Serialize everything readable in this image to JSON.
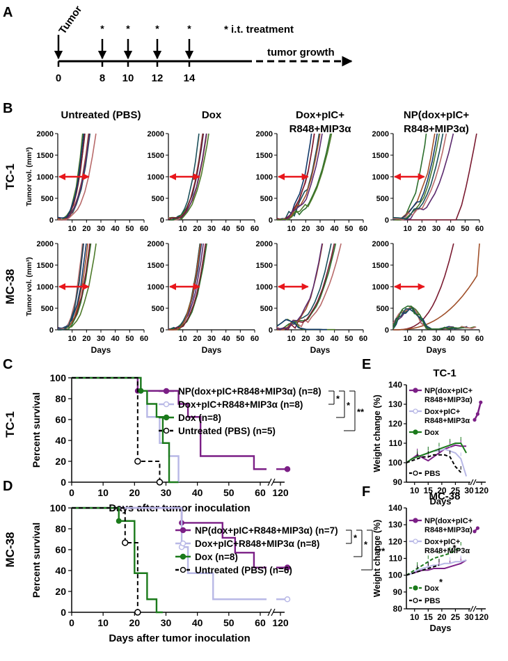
{
  "panel_labels": {
    "A": "A",
    "B": "B",
    "C": "C",
    "D": "D",
    "E": "E",
    "F": "F"
  },
  "timeline": {
    "tumor_label": "Tumor",
    "days": [
      "0",
      "8",
      "10",
      "12",
      "14"
    ],
    "star": "*",
    "treatment_note": "* i.t. treatment",
    "growth_label": "tumor growth"
  },
  "spaghetti": {
    "columns": [
      "Untreated (PBS)",
      "Dox",
      "Dox+pIC+\nR848+MIP3α",
      "NP(dox+pIC+\nR848+MIP3α)"
    ],
    "rows": [
      "TC-1",
      "MC-38"
    ],
    "ylabel": "Tumor vol. (mm³)",
    "xlabel": "Days",
    "yticks": [
      "0",
      "500",
      "1000",
      "1500",
      "2000"
    ],
    "xticks": [
      "10",
      "20",
      "30",
      "40",
      "50",
      "60"
    ]
  },
  "colors": {
    "np": "#7b1f86",
    "dox_combo": "#b8b8e6",
    "dox": "#1b7a1b",
    "pbs": "#000000",
    "arrow": "#e8161b"
  },
  "survival_common": {
    "ylabel": "Percent survival",
    "xlabel": "Days after tumor inoculation",
    "yticks": [
      "0",
      "20",
      "40",
      "60",
      "80",
      "100"
    ],
    "xticks": [
      "0",
      "10",
      "20",
      "30",
      "40",
      "50",
      "60",
      "120"
    ]
  },
  "weight_common": {
    "ylabel": "Weight change (%)",
    "xlabel": "Days"
  },
  "chart_data": [
    {
      "id": "survival_tc1",
      "type": "line",
      "row_label": "TC-1",
      "xlim": [
        0,
        62
      ],
      "ylim": [
        0,
        100
      ],
      "series": [
        {
          "name": "NP(dox+pIC+R848+MIP3α) (n=8)",
          "x": [
            0,
            21,
            34,
            37,
            41,
            58,
            62
          ],
          "y": [
            100,
            87.5,
            75,
            62.5,
            25,
            12.5,
            12.5
          ]
        },
        {
          "name": "Dox+pIC+R848+MIP3α (n=8)",
          "x": [
            0,
            22,
            24,
            28,
            31,
            34
          ],
          "y": [
            100,
            87.5,
            62.5,
            37.5,
            25,
            0
          ]
        },
        {
          "name": "Dox (n=8)",
          "x": [
            0,
            22,
            24,
            27,
            29,
            31,
            34
          ],
          "y": [
            100,
            87.5,
            75,
            62.5,
            37.5,
            0,
            0
          ]
        },
        {
          "name": "Untreated (PBS) (n=5)",
          "x": [
            0,
            21,
            28
          ],
          "y": [
            100,
            20,
            0
          ]
        }
      ],
      "significance": [
        "*",
        "*",
        "**"
      ]
    },
    {
      "id": "survival_mc38",
      "type": "line",
      "row_label": "MC-38",
      "xlim": [
        0,
        62
      ],
      "ylim": [
        0,
        100
      ],
      "series": [
        {
          "name": "NP(dox+pIC+R848+MIP3α) (n=7)",
          "x": [
            0,
            35,
            45,
            48,
            52,
            58,
            62
          ],
          "y": [
            100,
            85.7,
            85.7,
            71.4,
            57.1,
            42.9,
            42.9
          ]
        },
        {
          "name": "Dox+pIC+R848+MIP3α (n=8)",
          "x": [
            0,
            35,
            37,
            45,
            62
          ],
          "y": [
            100,
            62.5,
            37.5,
            12.5,
            12.5
          ]
        },
        {
          "name": "Dox (n=8)",
          "x": [
            0,
            15,
            20,
            24,
            27,
            29
          ],
          "y": [
            100,
            87.5,
            37.5,
            12.5,
            0,
            0
          ]
        },
        {
          "name": "Untreated (PBS) (n=6)",
          "x": [
            0,
            17,
            21
          ],
          "y": [
            100,
            66.7,
            0
          ]
        }
      ],
      "significance": [
        "*",
        "*",
        "***"
      ]
    },
    {
      "id": "weight_tc1",
      "type": "line",
      "title": "TC-1",
      "yticks": [
        "90",
        "100",
        "110",
        "120",
        "130",
        "140"
      ],
      "xticks": [
        "10",
        "15",
        "20",
        "25",
        "30",
        "120"
      ],
      "ylim": [
        90,
        140
      ],
      "series": [
        {
          "name": "NP(dox+pIC+\nR848+MIP3α)",
          "x": [
            7,
            9,
            11,
            13,
            15,
            17,
            19,
            21,
            23,
            25,
            27,
            29,
            31,
            33,
            35
          ],
          "y": [
            100,
            102,
            104,
            102.5,
            101,
            103,
            105,
            107,
            108,
            109,
            108.5,
            108.5,
            122,
            125,
            131
          ]
        },
        {
          "name": "Dox+pIC+\nR848+MIP3α",
          "x": [
            7,
            9,
            11,
            13,
            15,
            17,
            19,
            21,
            23,
            25,
            27,
            29
          ],
          "y": [
            100,
            102,
            103,
            104,
            105,
            106,
            106,
            107,
            106,
            105,
            102,
            93
          ]
        },
        {
          "name": "Dox",
          "x": [
            7,
            9,
            11,
            13,
            15,
            17,
            19,
            21,
            23,
            25,
            27,
            29
          ],
          "y": [
            100,
            102,
            103,
            104,
            105,
            106,
            107,
            108,
            109,
            110,
            110,
            105
          ]
        },
        {
          "name": "PBS",
          "x": [
            7,
            9,
            11,
            13,
            15,
            17,
            19,
            21,
            23,
            25,
            27
          ],
          "y": [
            100,
            101,
            102,
            103,
            103,
            104,
            104,
            104,
            103,
            98,
            95
          ]
        }
      ]
    },
    {
      "id": "weight_mc38",
      "type": "line",
      "title": "MC-38",
      "yticks": [
        "80",
        "90",
        "100",
        "110",
        "120",
        "130",
        "140"
      ],
      "xticks": [
        "10",
        "15",
        "20",
        "25",
        "30",
        "120"
      ],
      "ylim": [
        80,
        140
      ],
      "series": [
        {
          "name": "NP(dox+pIC+\nR848+MIP3α)",
          "x": [
            7,
            9,
            11,
            13,
            15,
            17,
            19,
            21,
            23,
            25,
            27,
            29,
            31,
            33
          ],
          "y": [
            100,
            101,
            102,
            103,
            103,
            104,
            104,
            104,
            105,
            106,
            107,
            109,
            126,
            128
          ]
        },
        {
          "name": "Dox+pIC+\nR848+MIP3α",
          "x": [
            7,
            9,
            11,
            13,
            15,
            17,
            19,
            21,
            23,
            25,
            27,
            29
          ],
          "y": [
            100,
            101,
            103,
            104,
            105,
            106,
            106,
            107,
            107,
            108,
            108,
            109
          ]
        },
        {
          "name": "Dox",
          "x": [
            7,
            9,
            11,
            13,
            15,
            17,
            19,
            21,
            23,
            25,
            27
          ],
          "y": [
            100,
            102,
            104,
            106,
            108,
            110,
            111,
            112,
            113,
            115,
            116
          ]
        },
        {
          "name": "PBS",
          "x": [
            7,
            9,
            11,
            13,
            15,
            17,
            19
          ],
          "y": [
            100,
            101,
            102,
            103,
            104,
            105,
            106
          ]
        }
      ],
      "significance": [
        "*",
        "*"
      ]
    }
  ]
}
